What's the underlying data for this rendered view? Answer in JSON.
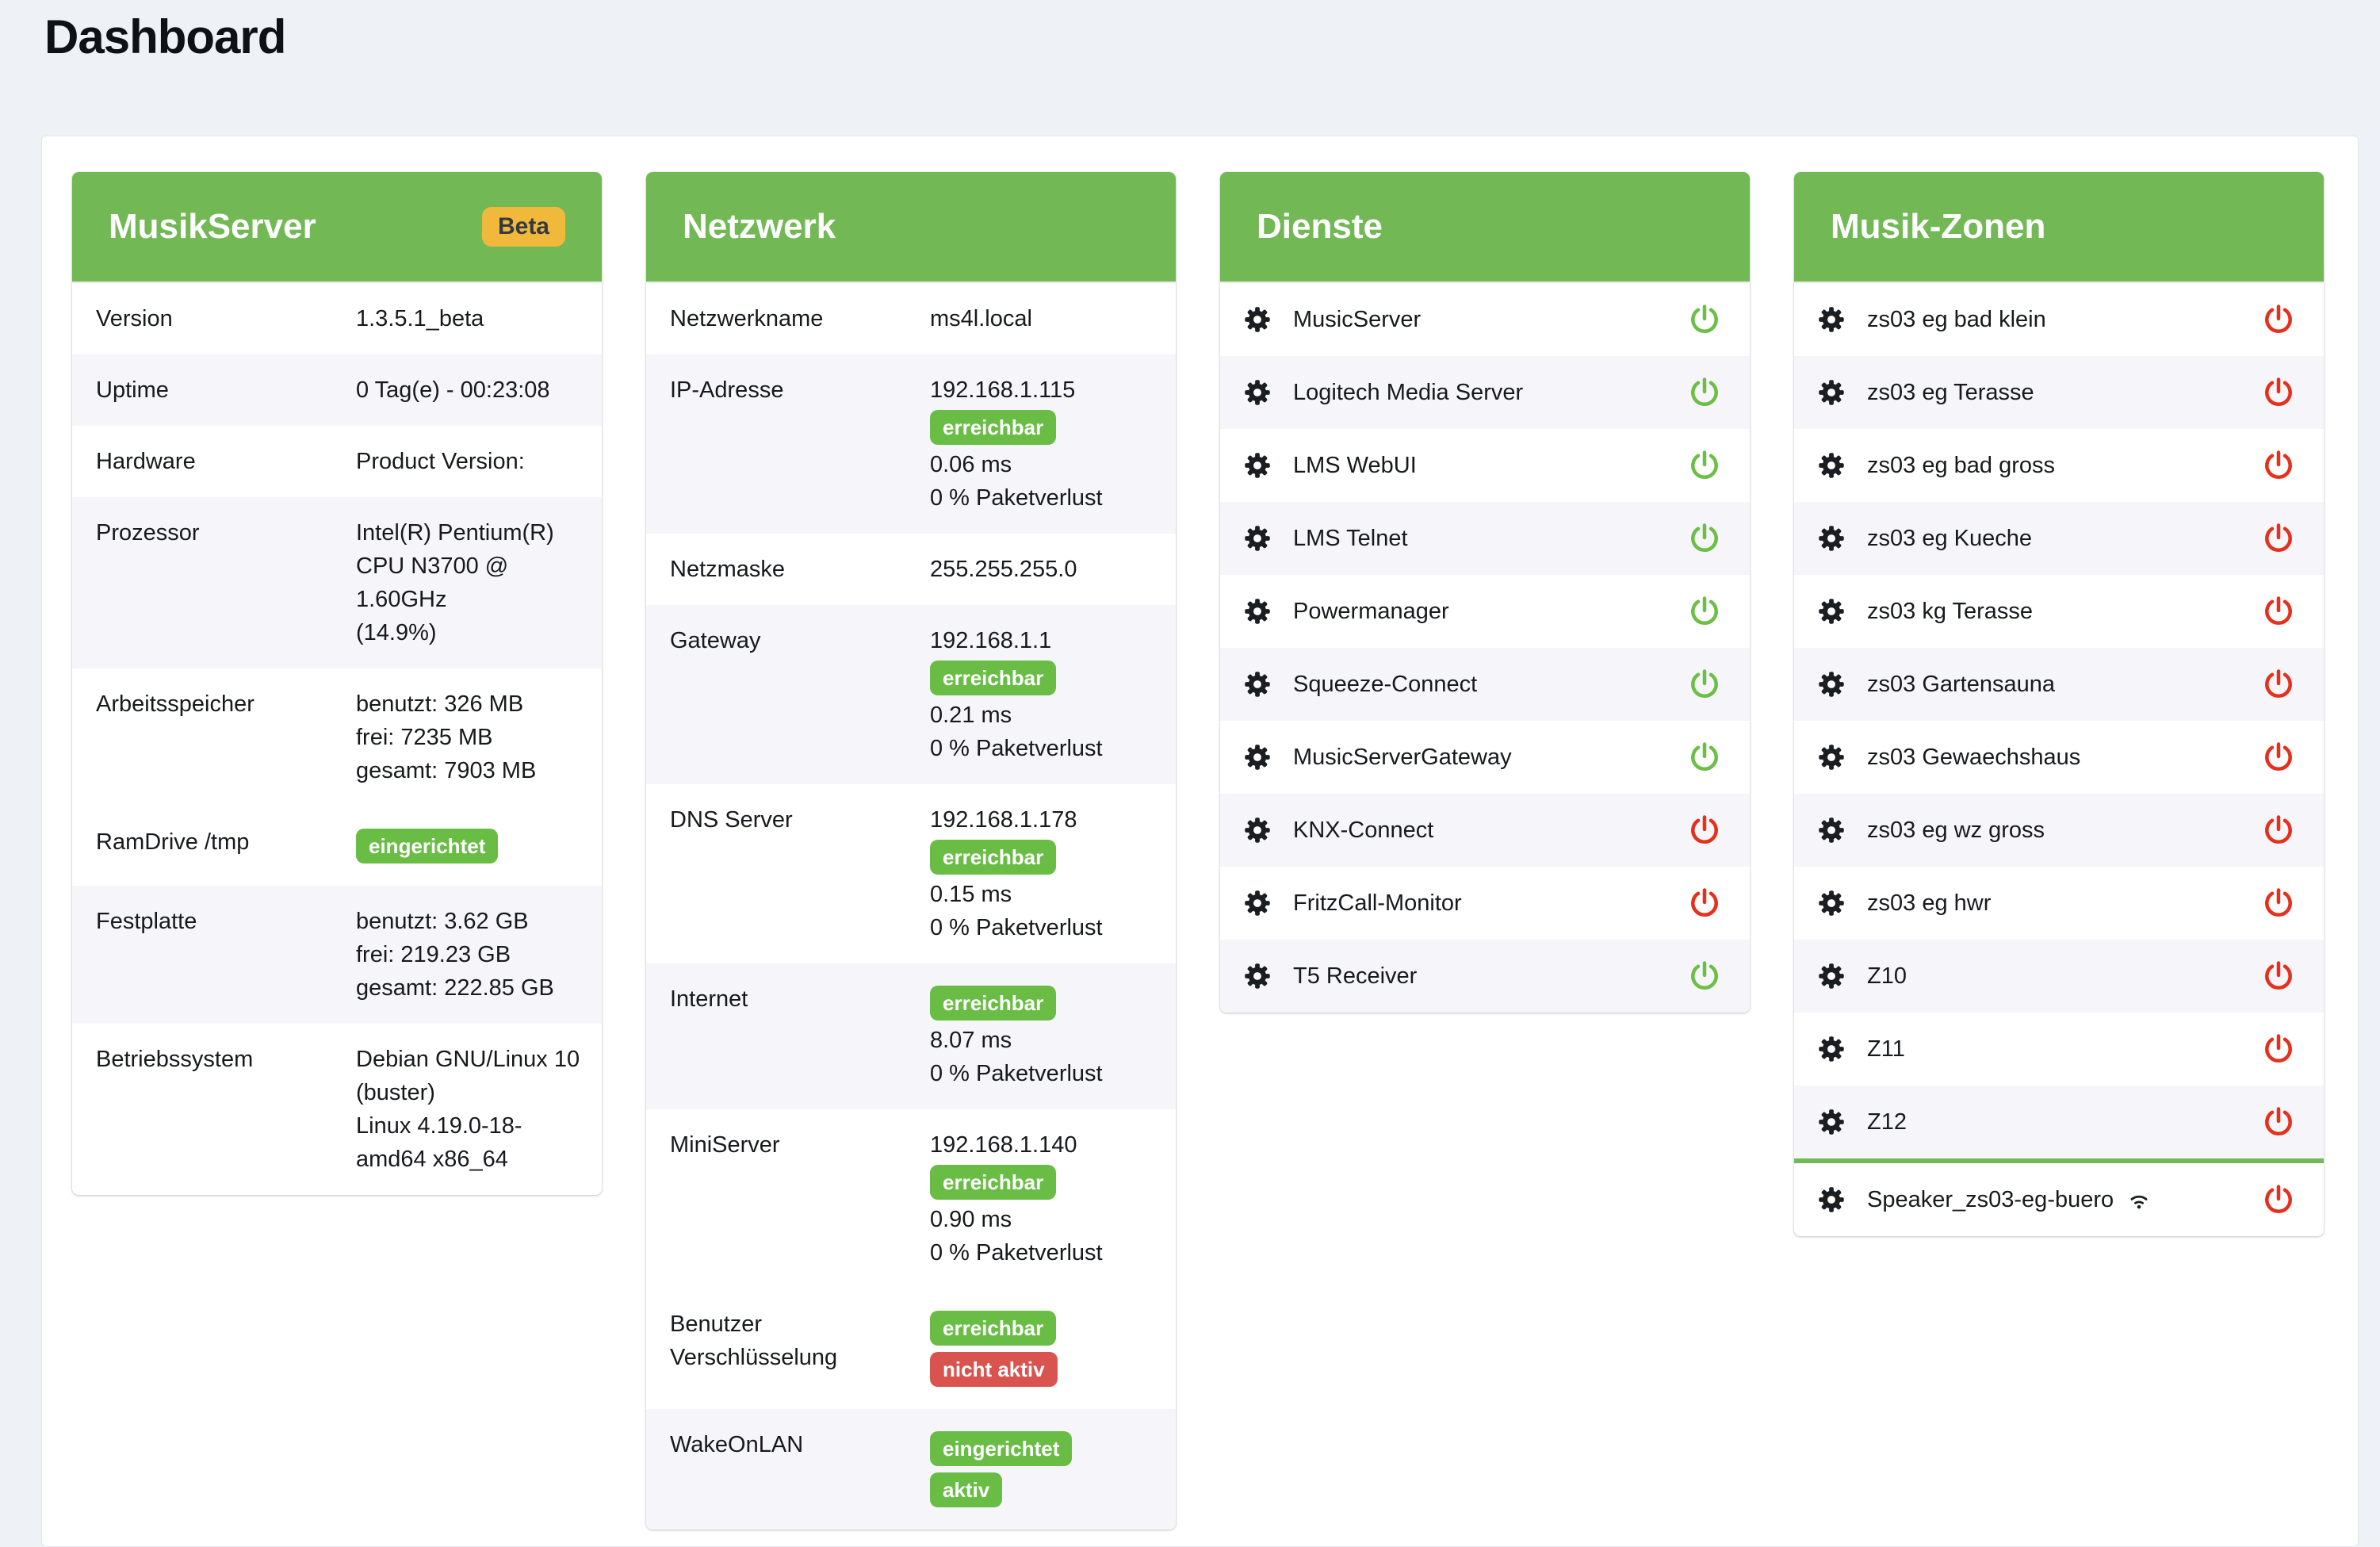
{
  "page": {
    "title": "Dashboard"
  },
  "colors": {
    "header_green": "#72b956",
    "badge_green": "#69bd45",
    "badge_red": "#d9534f",
    "beta_yellow": "#f0b93c",
    "power_on": "#6cbf45",
    "power_off": "#e5301d",
    "stripe": "#f6f6fa",
    "page_background": "#eef1f5"
  },
  "cards": [
    {
      "title": "MusikServer",
      "header_badge": "Beta",
      "type": "table",
      "rows": [
        {
          "label_lines": [
            "Version"
          ],
          "striped": false,
          "content": [
            {
              "t": "text",
              "v": "1.3.5.1_beta"
            }
          ]
        },
        {
          "label_lines": [
            "Uptime"
          ],
          "striped": true,
          "content": [
            {
              "t": "text",
              "v": "0 Tag(e) - 00:23:08"
            }
          ]
        },
        {
          "label_lines": [
            "Hardware"
          ],
          "striped": false,
          "content": [
            {
              "t": "text",
              "v": "Product Version:"
            }
          ]
        },
        {
          "label_lines": [
            "Prozessor"
          ],
          "striped": true,
          "content": [
            {
              "t": "text",
              "v": "Intel(R) Pentium(R)"
            },
            {
              "t": "text",
              "v": "CPU N3700 @"
            },
            {
              "t": "text",
              "v": "1.60GHz"
            },
            {
              "t": "text",
              "v": "(14.9%)"
            }
          ]
        },
        {
          "label_lines": [
            "Arbeitsspeicher"
          ],
          "striped": false,
          "content": [
            {
              "t": "text",
              "v": "benutzt: 326 MB"
            },
            {
              "t": "text",
              "v": "frei: 7235 MB"
            },
            {
              "t": "text",
              "v": "gesamt: 7903 MB"
            }
          ]
        },
        {
          "label_lines": [
            "RamDrive /tmp"
          ],
          "striped": false,
          "content": [
            {
              "t": "badge",
              "v": "eingerichtet",
              "c": "green"
            }
          ]
        },
        {
          "label_lines": [
            "Festplatte"
          ],
          "striped": true,
          "content": [
            {
              "t": "text",
              "v": "benutzt: 3.62 GB"
            },
            {
              "t": "text",
              "v": "frei: 219.23 GB"
            },
            {
              "t": "text",
              "v": "gesamt: 222.85 GB"
            }
          ]
        },
        {
          "label_lines": [
            "Betriebssystem"
          ],
          "striped": false,
          "content": [
            {
              "t": "text",
              "v": "Debian GNU/Linux 10"
            },
            {
              "t": "text",
              "v": "(buster)"
            },
            {
              "t": "text",
              "v": "Linux 4.19.0-18-"
            },
            {
              "t": "text",
              "v": "amd64 x86_64"
            }
          ]
        }
      ]
    },
    {
      "title": "Netzwerk",
      "header_badge": null,
      "type": "table",
      "rows": [
        {
          "label_lines": [
            "Netzwerkname"
          ],
          "striped": false,
          "content": [
            {
              "t": "text",
              "v": "ms4l.local"
            }
          ]
        },
        {
          "label_lines": [
            "IP-Adresse"
          ],
          "striped": true,
          "content": [
            {
              "t": "text",
              "v": "192.168.1.115"
            },
            {
              "t": "badge",
              "v": "erreichbar",
              "c": "green"
            },
            {
              "t": "text",
              "v": "0.06 ms"
            },
            {
              "t": "text",
              "v": "0 % Paketverlust"
            }
          ]
        },
        {
          "label_lines": [
            "Netzmaske"
          ],
          "striped": false,
          "content": [
            {
              "t": "text",
              "v": "255.255.255.0"
            }
          ]
        },
        {
          "label_lines": [
            "Gateway"
          ],
          "striped": true,
          "content": [
            {
              "t": "text",
              "v": "192.168.1.1"
            },
            {
              "t": "badge",
              "v": "erreichbar",
              "c": "green"
            },
            {
              "t": "text",
              "v": "0.21 ms"
            },
            {
              "t": "text",
              "v": "0 % Paketverlust"
            }
          ]
        },
        {
          "label_lines": [
            "DNS Server"
          ],
          "striped": false,
          "content": [
            {
              "t": "text",
              "v": "192.168.1.178"
            },
            {
              "t": "badge",
              "v": "erreichbar",
              "c": "green"
            },
            {
              "t": "text",
              "v": "0.15 ms"
            },
            {
              "t": "text",
              "v": "0 % Paketverlust"
            }
          ]
        },
        {
          "label_lines": [
            "Internet"
          ],
          "striped": true,
          "content": [
            {
              "t": "badge",
              "v": "erreichbar",
              "c": "green"
            },
            {
              "t": "text",
              "v": "8.07 ms"
            },
            {
              "t": "text",
              "v": "0 % Paketverlust"
            }
          ]
        },
        {
          "label_lines": [
            "MiniServer"
          ],
          "striped": false,
          "content": [
            {
              "t": "text",
              "v": "192.168.1.140"
            },
            {
              "t": "badge",
              "v": "erreichbar",
              "c": "green"
            },
            {
              "t": "text",
              "v": "0.90 ms"
            },
            {
              "t": "text",
              "v": "0 % Paketverlust"
            }
          ]
        },
        {
          "label_lines": [
            "Benutzer",
            "Verschlüsselung"
          ],
          "striped": false,
          "content": [
            {
              "t": "badge",
              "v": "erreichbar",
              "c": "green"
            },
            {
              "t": "badge",
              "v": "nicht aktiv",
              "c": "red"
            }
          ]
        },
        {
          "label_lines": [
            "WakeOnLAN"
          ],
          "striped": true,
          "content": [
            {
              "t": "badge",
              "v": "eingerichtet",
              "c": "green"
            },
            {
              "t": "badge",
              "v": "aktiv",
              "c": "green"
            }
          ]
        }
      ]
    },
    {
      "title": "Dienste",
      "header_badge": null,
      "type": "services",
      "rows": [
        {
          "name": "MusicServer",
          "power": "on",
          "striped": false
        },
        {
          "name": "Logitech Media Server",
          "power": "on",
          "striped": true
        },
        {
          "name": "LMS WebUI",
          "power": "on",
          "striped": false
        },
        {
          "name": "LMS Telnet",
          "power": "on",
          "striped": true
        },
        {
          "name": "Powermanager",
          "power": "on",
          "striped": false
        },
        {
          "name": "Squeeze-Connect",
          "power": "on",
          "striped": true
        },
        {
          "name": "MusicServerGateway",
          "power": "on",
          "striped": false
        },
        {
          "name": "KNX-Connect",
          "power": "off",
          "striped": true
        },
        {
          "name": "FritzCall-Monitor",
          "power": "off",
          "striped": false
        },
        {
          "name": "T5 Receiver",
          "power": "on",
          "striped": true
        }
      ]
    },
    {
      "title": "Musik-Zonen",
      "header_badge": null,
      "type": "services",
      "rows": [
        {
          "name": "zs03 eg bad klein",
          "power": "off",
          "striped": false
        },
        {
          "name": "zs03 eg Terasse",
          "power": "off",
          "striped": true
        },
        {
          "name": "zs03 eg bad gross",
          "power": "off",
          "striped": false
        },
        {
          "name": "zs03 eg Kueche",
          "power": "off",
          "striped": true
        },
        {
          "name": "zs03 kg Terasse",
          "power": "off",
          "striped": false
        },
        {
          "name": "zs03 Gartensauna",
          "power": "off",
          "striped": true
        },
        {
          "name": "zs03 Gewaechshaus",
          "power": "off",
          "striped": false
        },
        {
          "name": "zs03 eg wz gross",
          "power": "off",
          "striped": true
        },
        {
          "name": "zs03 eg hwr",
          "power": "off",
          "striped": false
        },
        {
          "name": "Z10",
          "power": "off",
          "striped": true
        },
        {
          "name": "Z11",
          "power": "off",
          "striped": false
        },
        {
          "name": "Z12",
          "power": "off",
          "striped": true
        },
        {
          "name": "Speaker_zs03-eg-buero",
          "power": "off",
          "striped": false,
          "wifi": true,
          "divider_before": true
        }
      ]
    }
  ]
}
